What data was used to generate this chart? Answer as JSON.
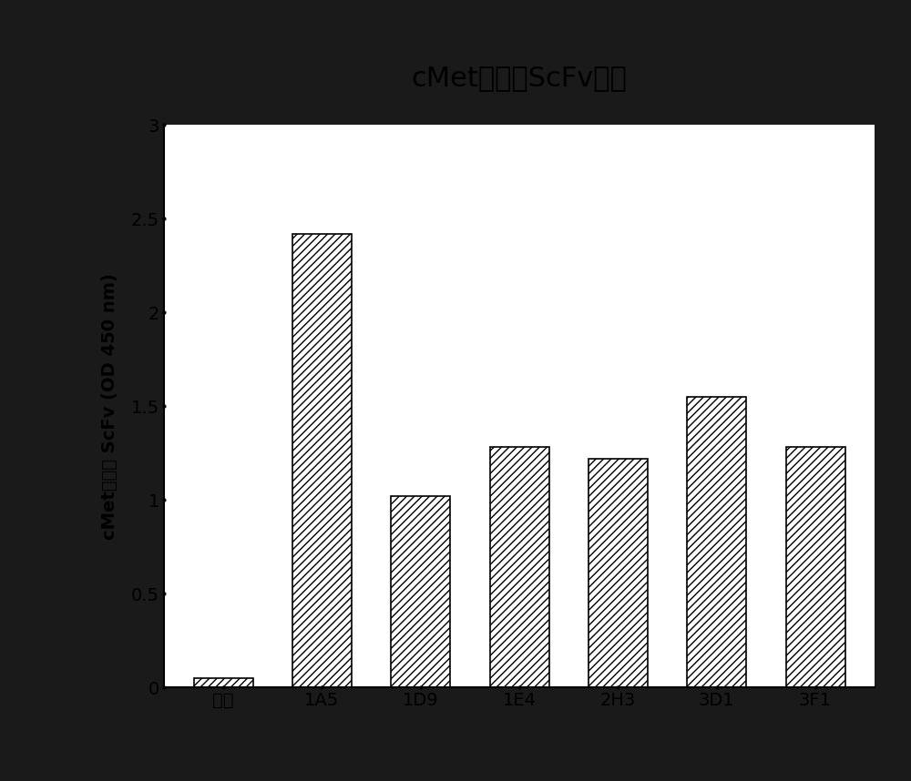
{
  "title": "cMet结合性ScFv蛋白",
  "ylabel": "cMet结合性 ScFv (OD 450 nm)",
  "categories": [
    "空白",
    "1A5",
    "1D9",
    "1E4",
    "2H3",
    "3D1",
    "3F1"
  ],
  "values": [
    0.05,
    2.42,
    1.02,
    1.28,
    1.22,
    1.55,
    1.28
  ],
  "ylim": [
    0,
    3.0
  ],
  "yticks": [
    0,
    0.5,
    1.0,
    1.5,
    2.0,
    2.5,
    3.0
  ],
  "bar_color": "#ffffff",
  "bar_edge_color": "#000000",
  "hatch": "////",
  "background_color": "#ffffff",
  "title_bg_color": "#ffffff",
  "outer_bg_color": "#1a1a1a",
  "title_fontsize": 22,
  "label_fontsize": 14,
  "tick_fontsize": 14
}
